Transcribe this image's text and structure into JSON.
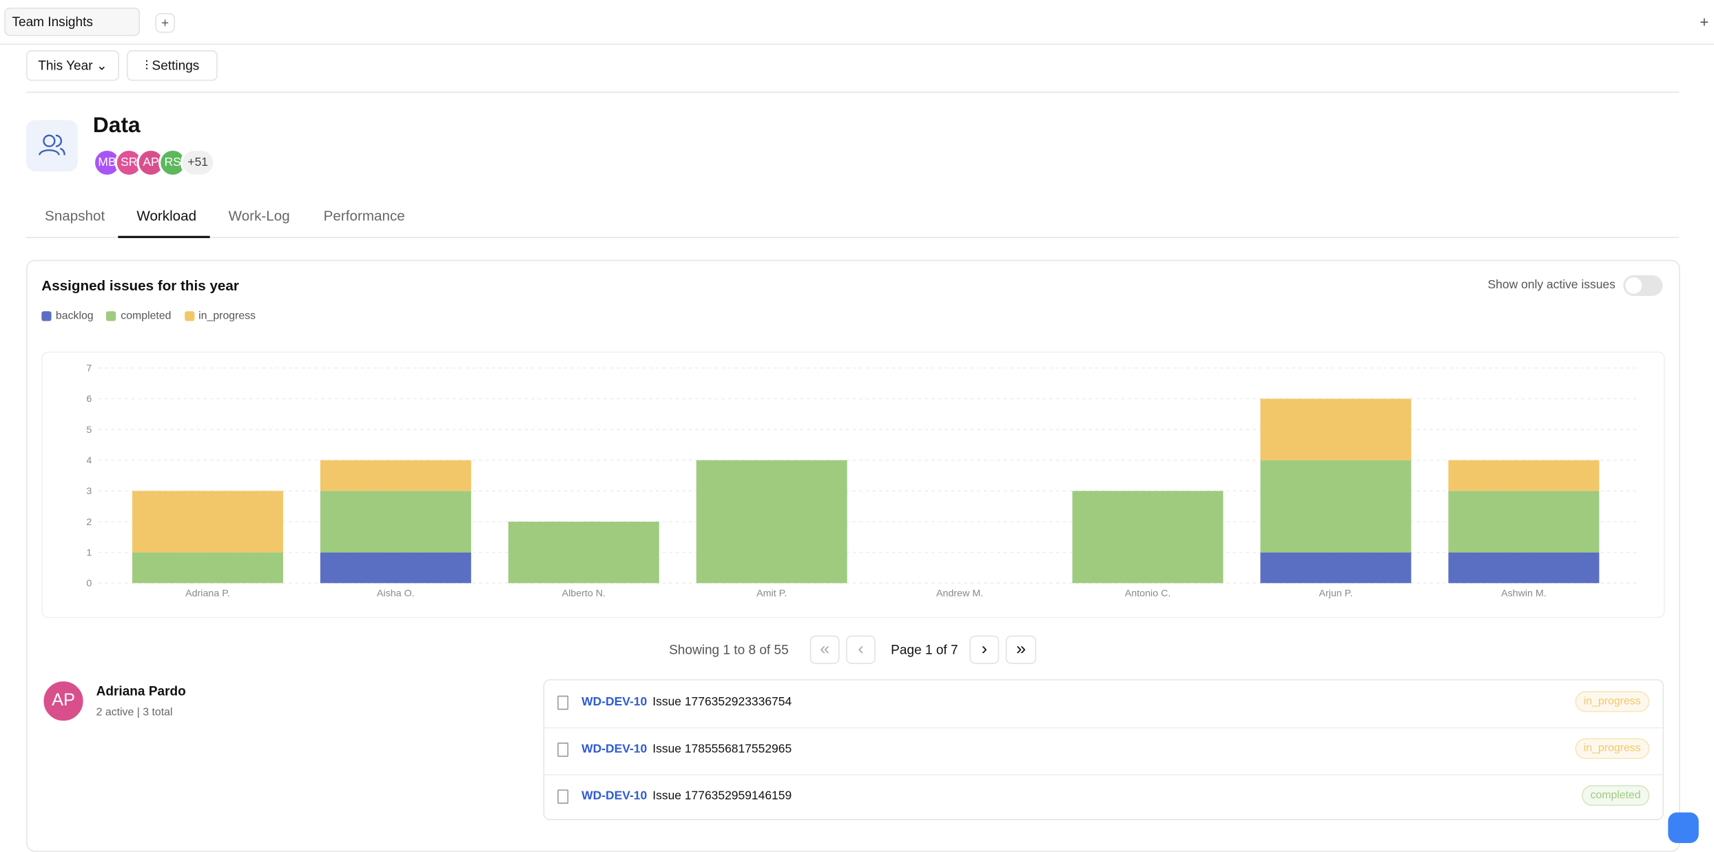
{
  "window_tab": "Team Insights",
  "tab_add": "+",
  "corner_add": "+",
  "toolbar": {
    "period": "This Year",
    "settings": "Settings"
  },
  "header": {
    "title": "Data",
    "avatars": [
      "MB",
      "SR",
      "AP",
      "RS"
    ],
    "more": "+51"
  },
  "tabs": [
    "Snapshot",
    "Workload",
    "Work-Log",
    "Performance"
  ],
  "panel": {
    "toggle_label": "Show only active issues"
  },
  "chart_data": {
    "type": "stacked_bar",
    "title": "Assigned issues for this year",
    "categories": [
      "Adriana P.",
      "Aisha O.",
      "Alberto N.",
      "Amit P.",
      "Andrew M.",
      "Antonio C.",
      "Arjun P.",
      "Ashwin M."
    ],
    "series": [
      {
        "name": "backlog",
        "color": "#5b6fc2",
        "values": [
          0,
          1,
          0,
          0,
          0,
          0,
          1,
          1
        ]
      },
      {
        "name": "completed",
        "color": "#9fcb7f",
        "values": [
          1,
          2,
          2,
          4,
          0,
          3,
          3,
          2
        ]
      },
      {
        "name": "in_progress",
        "color": "#f2c76a",
        "values": [
          2,
          1,
          0,
          0,
          0,
          0,
          2,
          1
        ]
      }
    ],
    "ylim": [
      0,
      7
    ],
    "yticks": [
      0,
      1,
      2,
      3,
      4,
      5,
      6,
      7
    ],
    "grid": true
  },
  "pagination": {
    "showing": "Showing 1 to 8 of 55",
    "first": "«",
    "prev": "‹",
    "page": "Page 1 of 7",
    "next": "›",
    "last": "»"
  },
  "person": {
    "initials": "AP",
    "name": "Adriana Pardo",
    "summary": "2 active | 3 total",
    "issues": [
      {
        "key": "WD-DEV-10",
        "title": "Issue 1776352923336754",
        "status": "in_progress"
      },
      {
        "key": "WD-DEV-10",
        "title": "Issue 1785556817552965",
        "status": "in_progress"
      },
      {
        "key": "WD-DEV-10",
        "title": "Issue 1776352959146159",
        "status": "completed"
      }
    ]
  }
}
